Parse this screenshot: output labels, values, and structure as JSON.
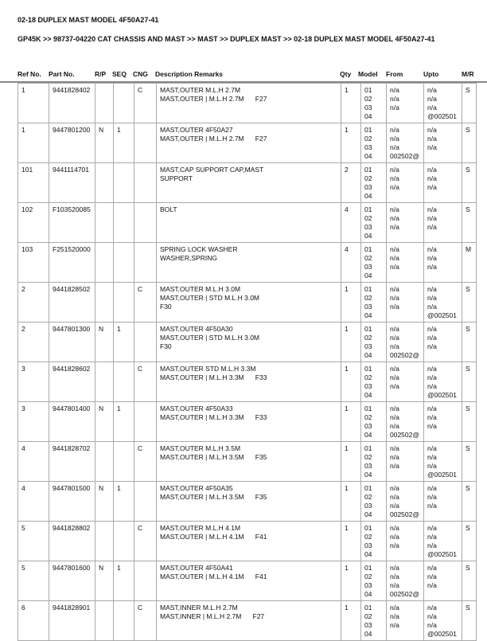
{
  "title": "02-18 DUPLEX MAST MODEL 4F50A27-41",
  "breadcrumb": "GP45K >> 98737-04220 CAT CHASSIS AND MAST >> MAST >> DUPLEX MAST >> 02-18 DUPLEX MAST MODEL 4F50A27-41",
  "headers": [
    "Ref No.",
    "Part No.",
    "R/P",
    "SEQ",
    "CNG",
    "Description Remarks",
    "Qty",
    "Model",
    "From",
    "Upto",
    "M/R"
  ],
  "rows": [
    {
      "ref": "1",
      "part": "9441828402",
      "rp": "",
      "seq": "",
      "cng": "C",
      "desc": "MAST,OUTER M.L.H 2.7M\nMAST,OUTER | M.L.H 2.7M      F27",
      "qty": "1",
      "model": "01\n02\n03\n04",
      "from": "n/a\nn/a\nn/a",
      "upto": "n/a\nn/a\nn/a\n@002501",
      "mr": "S"
    },
    {
      "ref": "1",
      "part": "9447801200",
      "rp": "N",
      "seq": "1",
      "cng": "",
      "desc": "MAST,OUTER 4F50A27\nMAST,OUTER | M.L.H 2.7M      F27",
      "qty": "1",
      "model": "01\n02\n03\n04",
      "from": "n/a\nn/a\nn/a\n002502@",
      "upto": "n/a\nn/a\nn/a",
      "mr": "S"
    },
    {
      "ref": "101",
      "part": "9441114701",
      "rp": "",
      "seq": "",
      "cng": "",
      "desc": "MAST,CAP SUPPORT CAP,MAST\nSUPPORT",
      "qty": "2",
      "model": "01\n02\n03\n04",
      "from": "n/a\nn/a\nn/a",
      "upto": "n/a\nn/a\nn/a",
      "mr": "S"
    },
    {
      "ref": "102",
      "part": "F103520085",
      "rp": "",
      "seq": "",
      "cng": "",
      "desc": "BOLT",
      "qty": "4",
      "model": "01\n02\n03\n04",
      "from": "n/a\nn/a\nn/a",
      "upto": "n/a\nn/a\nn/a",
      "mr": "S"
    },
    {
      "ref": "103",
      "part": "F251520000",
      "rp": "",
      "seq": "",
      "cng": "",
      "desc": "SPRING LOCK WASHER\nWASHER,SPRING",
      "qty": "4",
      "model": "01\n02\n03\n04",
      "from": "n/a\nn/a\nn/a",
      "upto": "n/a\nn/a\nn/a",
      "mr": "M"
    },
    {
      "ref": "2",
      "part": "9441828502",
      "rp": "",
      "seq": "",
      "cng": "C",
      "desc": "MAST,OUTER M.L.H 3.0M\nMAST,OUTER | STD M.L.H 3.0M\nF30",
      "qty": "1",
      "model": "01\n02\n03\n04",
      "from": "n/a\nn/a\nn/a",
      "upto": "n/a\nn/a\nn/a\n@002501",
      "mr": "S"
    },
    {
      "ref": "2",
      "part": "9447801300",
      "rp": "N",
      "seq": "1",
      "cng": "",
      "desc": "MAST,OUTER 4F50A30\nMAST,OUTER | STD M.L.H 3.0M\nF30",
      "qty": "1",
      "model": "01\n02\n03\n04",
      "from": "n/a\nn/a\nn/a\n002502@",
      "upto": "n/a\nn/a\nn/a",
      "mr": "S"
    },
    {
      "ref": "3",
      "part": "9441828602",
      "rp": "",
      "seq": "",
      "cng": "C",
      "desc": "MAST,OUTER STD M.L.H 3.3M\nMAST,OUTER | M.L.H 3.3M      F33",
      "qty": "1",
      "model": "01\n02\n03\n04",
      "from": "n/a\nn/a\nn/a",
      "upto": "n/a\nn/a\nn/a\n@002501",
      "mr": "S"
    },
    {
      "ref": "3",
      "part": "9447801400",
      "rp": "N",
      "seq": "1",
      "cng": "",
      "desc": "MAST,OUTER 4F50A33\nMAST,OUTER | M.L.H 3.3M      F33",
      "qty": "1",
      "model": "01\n02\n03\n04",
      "from": "n/a\nn/a\nn/a\n002502@",
      "upto": "n/a\nn/a\nn/a",
      "mr": "S"
    },
    {
      "ref": "4",
      "part": "9441828702",
      "rp": "",
      "seq": "",
      "cng": "C",
      "desc": "MAST,OUTER M.L.H 3.5M\nMAST,OUTER | M.L.H 3.5M      F35",
      "qty": "1",
      "model": "01\n02\n03\n04",
      "from": "n/a\nn/a\nn/a",
      "upto": "n/a\nn/a\nn/a\n@002501",
      "mr": "S"
    },
    {
      "ref": "4",
      "part": "9447801500",
      "rp": "N",
      "seq": "1",
      "cng": "",
      "desc": "MAST,OUTER 4F50A35\nMAST,OUTER | M.L.H 3.5M      F35",
      "qty": "1",
      "model": "01\n02\n03\n04",
      "from": "n/a\nn/a\nn/a\n002502@",
      "upto": "n/a\nn/a\nn/a",
      "mr": "S"
    },
    {
      "ref": "5",
      "part": "9441828802",
      "rp": "",
      "seq": "",
      "cng": "C",
      "desc": "MAST,OUTER M.L.H 4.1M\nMAST,OUTER | M.L.H 4.1M      F41",
      "qty": "1",
      "model": "01\n02\n03\n04",
      "from": "n/a\nn/a\nn/a",
      "upto": "n/a\nn/a\nn/a\n@002501",
      "mr": "S"
    },
    {
      "ref": "5",
      "part": "9447801600",
      "rp": "N",
      "seq": "1",
      "cng": "",
      "desc": "MAST,OUTER 4F50A41\nMAST,OUTER | M.L.H 4.1M      F41",
      "qty": "1",
      "model": "01\n02\n03\n04",
      "from": "n/a\nn/a\nn/a\n002502@",
      "upto": "n/a\nn/a\nn/a",
      "mr": "S"
    },
    {
      "ref": "6",
      "part": "9441828901",
      "rp": "",
      "seq": "",
      "cng": "C",
      "desc": "MAST,INNER M.L.H 2.7M\nMAST,INNER | M.L.H 2.7M      F27",
      "qty": "1",
      "model": "01\n02\n03\n04",
      "from": "n/a\nn/a\nn/a",
      "upto": "n/a\nn/a\nn/a\n@002501",
      "mr": "S"
    }
  ]
}
